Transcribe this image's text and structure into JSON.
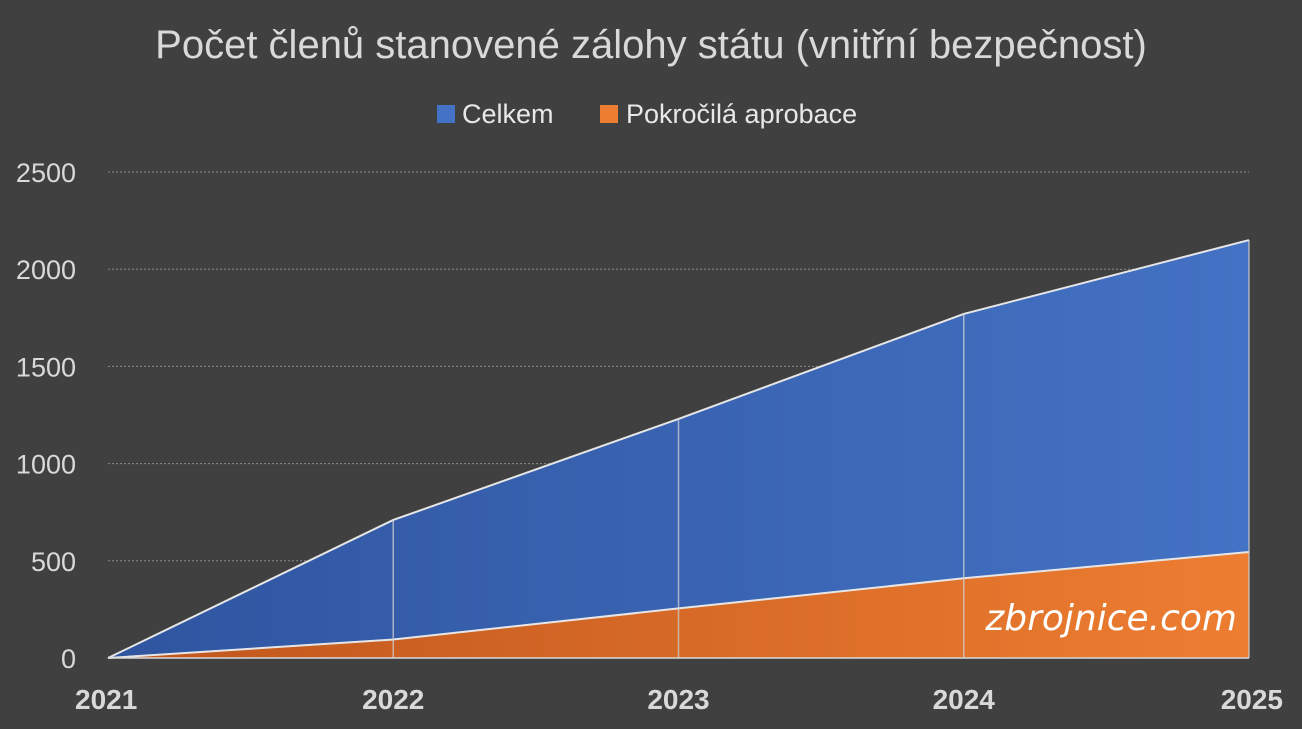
{
  "chart_data": {
    "type": "area",
    "title": "Počet členů stanovené zálohy státu (vnitřní bezpečnost)",
    "x": [
      "2021",
      "2022",
      "2023",
      "2024",
      "2025"
    ],
    "series": [
      {
        "name": "Celkem",
        "values": [
          0,
          710,
          1230,
          1770,
          2150
        ],
        "color": "#4472c4"
      },
      {
        "name": "Pokročilá aprobace",
        "values": [
          0,
          95,
          255,
          410,
          545
        ],
        "color": "#ed7d31"
      }
    ],
    "ylim": [
      0,
      2500
    ],
    "yticks": [
      0,
      500,
      1000,
      1500,
      2000,
      2500
    ],
    "grid": true,
    "legend": "top-center",
    "watermark": "zbrojnice.com"
  }
}
